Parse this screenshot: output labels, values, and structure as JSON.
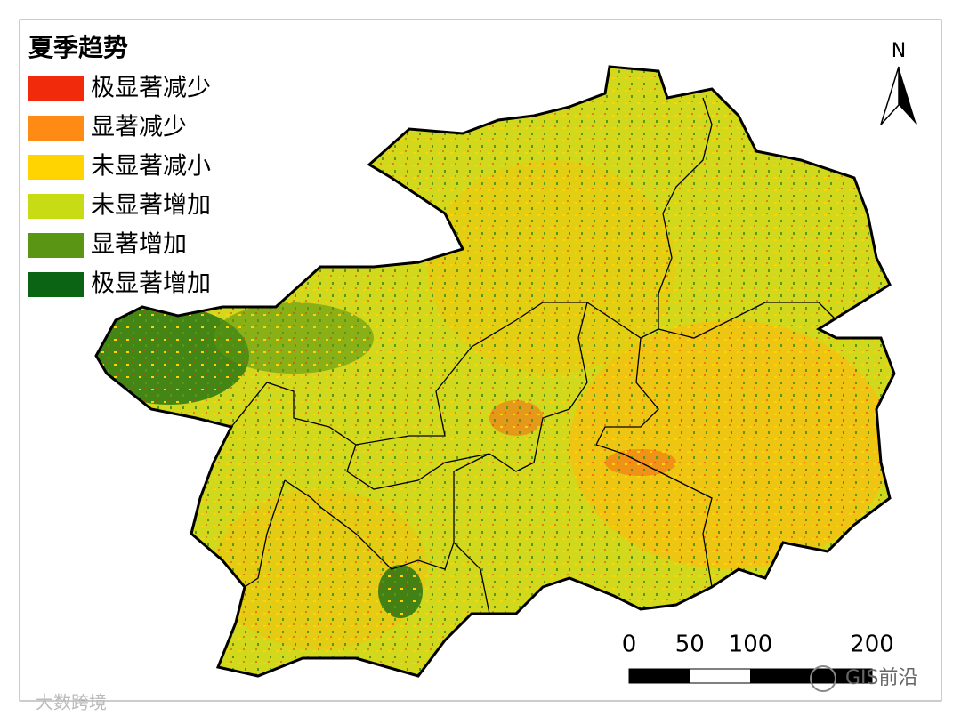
{
  "legend": {
    "title": "夏季趋势",
    "items": [
      {
        "label": "极显著减少",
        "color": "#f22a0c"
      },
      {
        "label": "显著减少",
        "color": "#ff8a14"
      },
      {
        "label": "未显著减小",
        "color": "#ffd400"
      },
      {
        "label": "未显著增加",
        "color": "#c8dc14"
      },
      {
        "label": "显著增加",
        "color": "#5a9614"
      },
      {
        "label": "极显著增加",
        "color": "#0a6414"
      }
    ]
  },
  "north_arrow": {
    "label": "N"
  },
  "scale_bar": {
    "labels": [
      0,
      50,
      100,
      200
    ]
  },
  "watermarks": {
    "left": "大数跨境",
    "right": "GIS前沿"
  }
}
